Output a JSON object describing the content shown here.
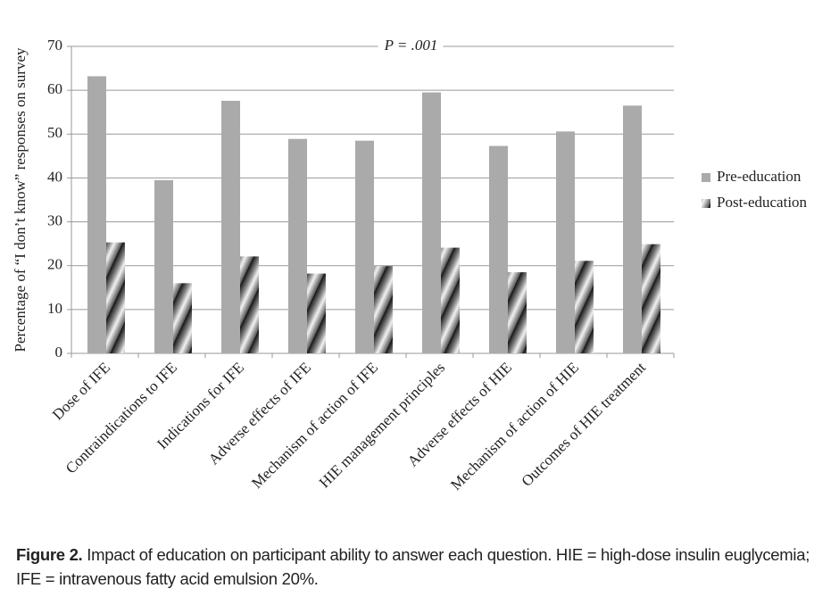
{
  "chart_data": {
    "type": "bar",
    "annotation": "P = .001",
    "y_label": "Percentage of “I don’t know” responses on survey",
    "categories": [
      "Dose of IFE",
      "Contraindications to IFE",
      "Indications for IFE",
      "Adverse effects of IFE",
      "Mechanism of action of IFE",
      "HIE management principles",
      "Adverse effects of HIE",
      "Mechanism of action of HIE",
      "Outcomes of HIE treatment"
    ],
    "series": [
      {
        "name": "Pre-education",
        "color": "#aaaaaa",
        "values": [
          63.2,
          39.5,
          57.6,
          48.9,
          48.5,
          59.5,
          47.3,
          50.6,
          56.5
        ]
      },
      {
        "name": "Post-education",
        "color": "#777777",
        "values": [
          25.3,
          16.0,
          22.1,
          18.2,
          19.9,
          24.1,
          18.5,
          21.1,
          24.9
        ]
      }
    ],
    "ylim": [
      0,
      70
    ],
    "yticks": [
      0,
      10,
      20,
      30,
      40,
      50,
      60,
      70
    ],
    "grid": true,
    "legend": "right"
  },
  "caption": {
    "label": "Figure 2.",
    "text": "Impact of education on participant ability to answer each question. HIE = high-dose insulin euglycemia; IFE = intravenous fatty acid emulsion 20%."
  }
}
